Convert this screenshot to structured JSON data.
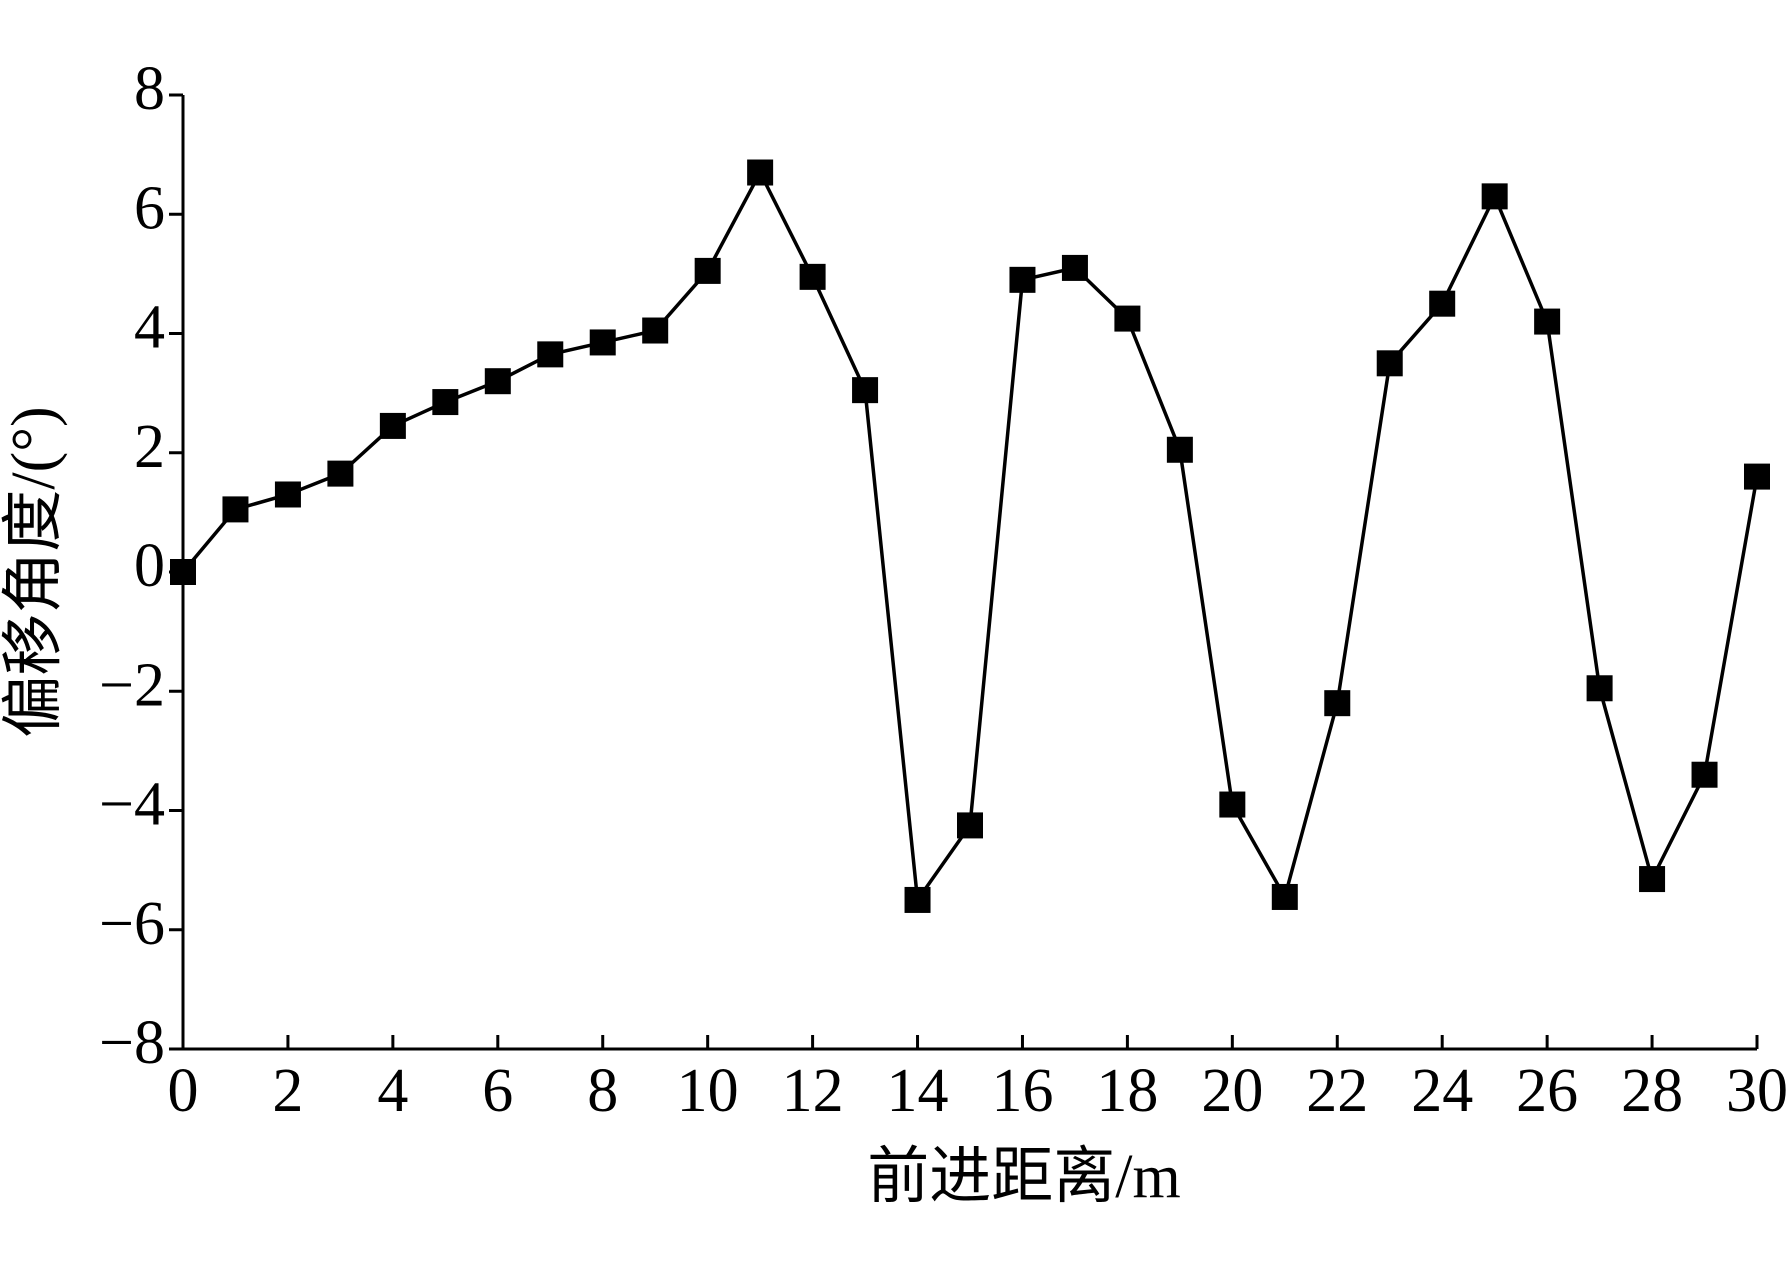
{
  "chart_data": {
    "type": "line",
    "x_label": "前进距离/m",
    "y_label": "偏移角度/(°)",
    "x": [
      0,
      1,
      2,
      3,
      4,
      5,
      6,
      7,
      8,
      9,
      10,
      11,
      12,
      13,
      14,
      15,
      16,
      17,
      18,
      19,
      20,
      21,
      22,
      23,
      24,
      25,
      26,
      27,
      28,
      29,
      30
    ],
    "series": [
      {
        "color": "#000000",
        "values": [
          0,
          1.05,
          1.3,
          1.65,
          2.45,
          2.85,
          3.2,
          3.65,
          3.85,
          4.05,
          5.05,
          6.7,
          4.95,
          3.05,
          -5.5,
          -4.25,
          4.9,
          5.1,
          4.25,
          2.05,
          -3.9,
          -5.45,
          -2.2,
          3.5,
          4.5,
          6.3,
          4.2,
          -1.95,
          -5.15,
          -3.4,
          1.6
        ]
      }
    ],
    "xlim": [
      0,
      30
    ],
    "xticks": [
      0,
      2,
      4,
      6,
      8,
      10,
      12,
      14,
      16,
      18,
      20,
      22,
      24,
      26,
      28,
      30
    ],
    "ylim": [
      -8,
      8
    ],
    "yticks": [
      {
        "value": -8,
        "label": "−8"
      },
      {
        "value": -6,
        "label": "−6"
      },
      {
        "value": -4,
        "label": "−4"
      },
      {
        "value": -2,
        "label": "−2"
      },
      0,
      2,
      4,
      6,
      8
    ],
    "grid": false
  }
}
